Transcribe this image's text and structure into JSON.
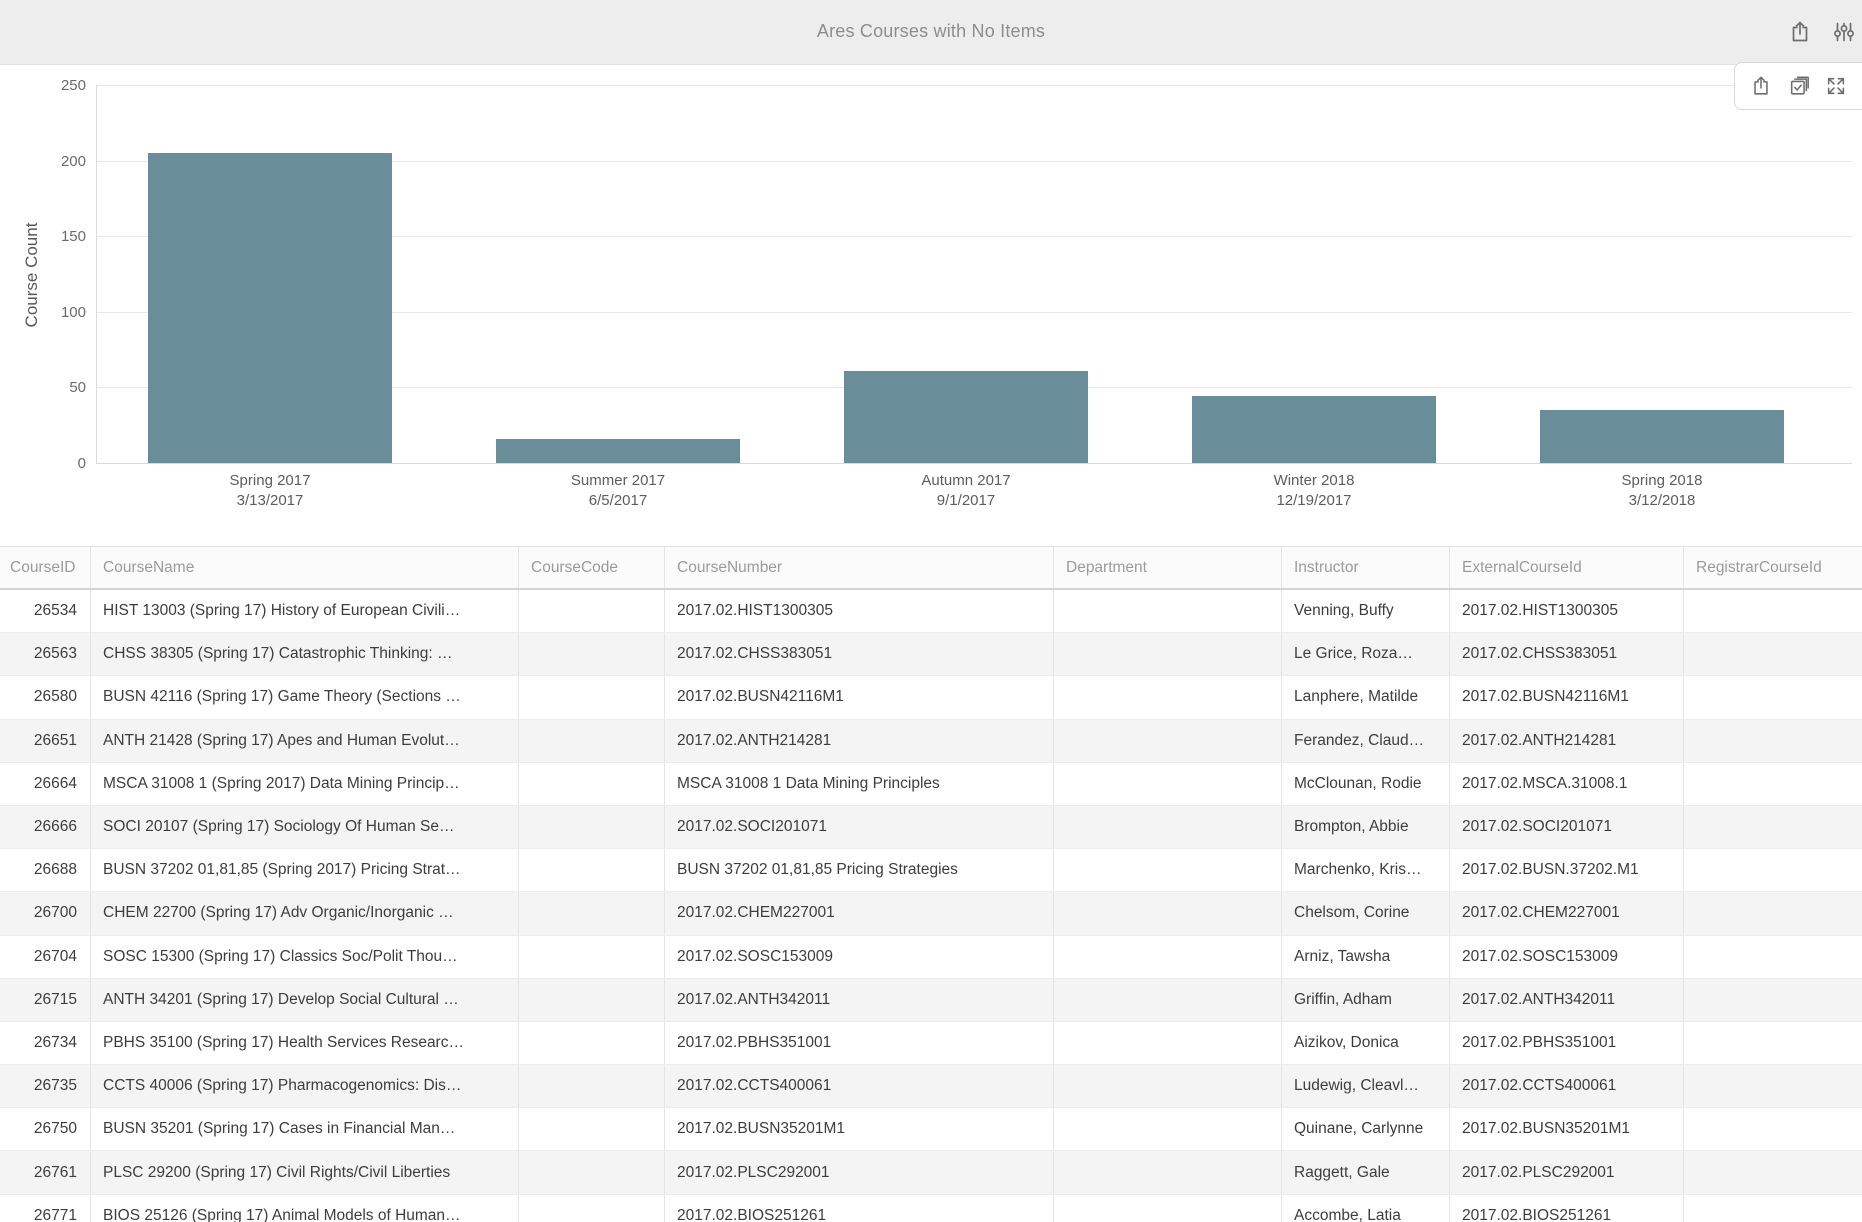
{
  "topbar": {
    "title": "Ares Courses with No Items",
    "icons": [
      {
        "name": "share-icon"
      },
      {
        "name": "filter-sliders-icon"
      }
    ]
  },
  "chart_toolbar": {
    "icons": [
      {
        "name": "share-icon"
      },
      {
        "name": "select-checkbox-icon"
      },
      {
        "name": "expand-fullscreen-icon"
      }
    ]
  },
  "chart_data": {
    "type": "bar",
    "title": "Ares Courses with No Items",
    "categories": [
      "Spring 2017",
      "Summer 2017",
      "Autumn 2017",
      "Winter 2018",
      "Spring 2018"
    ],
    "category_sublabels": [
      "3/13/2017",
      "6/5/2017",
      "9/1/2017",
      "12/19/2017",
      "3/12/2018"
    ],
    "values": [
      205,
      16,
      61,
      44,
      35
    ],
    "xlabel": "",
    "ylabel": "Course Count",
    "ylim": [
      0,
      250
    ],
    "yticks": [
      0,
      50,
      100,
      150,
      200,
      250
    ],
    "grid": true,
    "legend": "none",
    "bar_color": "#698d99"
  },
  "table": {
    "columns": [
      "CourseID",
      "CourseName",
      "CourseCode",
      "CourseNumber",
      "Department",
      "Instructor",
      "ExternalCourseId",
      "RegistrarCourseId"
    ],
    "rows": [
      [
        "26534",
        "HIST 13003 (Spring 17) History of European Civili…",
        "",
        "2017.02.HIST1300305",
        "",
        "Venning, Buffy",
        "2017.02.HIST1300305",
        ""
      ],
      [
        "26563",
        "CHSS 38305 (Spring 17) Catastrophic Thinking: …",
        "",
        "2017.02.CHSS383051",
        "",
        "Le Grice, Roza…",
        "2017.02.CHSS383051",
        ""
      ],
      [
        "26580",
        "BUSN 42116 (Spring 17) Game Theory (Sections …",
        "",
        "2017.02.BUSN42116M1",
        "",
        "Lanphere, Matilde",
        "2017.02.BUSN42116M1",
        ""
      ],
      [
        "26651",
        "ANTH 21428 (Spring 17) Apes and Human Evolut…",
        "",
        "2017.02.ANTH214281",
        "",
        "Ferandez, Claud…",
        "2017.02.ANTH214281",
        ""
      ],
      [
        "26664",
        "MSCA 31008 1 (Spring 2017) Data Mining Princip…",
        "",
        "MSCA 31008 1 Data Mining Principles",
        "",
        "McClounan, Rodie",
        "2017.02.MSCA.31008.1",
        ""
      ],
      [
        "26666",
        "SOCI 20107 (Spring 17) Sociology Of Human Se…",
        "",
        "2017.02.SOCI201071",
        "",
        "Brompton, Abbie",
        "2017.02.SOCI201071",
        ""
      ],
      [
        "26688",
        "BUSN 37202 01,81,85 (Spring 2017) Pricing Strat…",
        "",
        "BUSN 37202 01,81,85 Pricing Strategies",
        "",
        "Marchenko, Kris…",
        "2017.02.BUSN.37202.M1",
        ""
      ],
      [
        "26700",
        "CHEM 22700 (Spring 17) Adv Organic/Inorganic …",
        "",
        "2017.02.CHEM227001",
        "",
        "Chelsom, Corine",
        "2017.02.CHEM227001",
        ""
      ],
      [
        "26704",
        "SOSC 15300 (Spring 17) Classics Soc/Polit Thou…",
        "",
        "2017.02.SOSC153009",
        "",
        "Arniz, Tawsha",
        "2017.02.SOSC153009",
        ""
      ],
      [
        "26715",
        "ANTH 34201 (Spring 17) Develop Social Cultural …",
        "",
        "2017.02.ANTH342011",
        "",
        "Griffin, Adham",
        "2017.02.ANTH342011",
        ""
      ],
      [
        "26734",
        "PBHS 35100 (Spring 17) Health Services Researc…",
        "",
        "2017.02.PBHS351001",
        "",
        "Aizikov, Donica",
        "2017.02.PBHS351001",
        ""
      ],
      [
        "26735",
        "CCTS 40006 (Spring 17) Pharmacogenomics: Dis…",
        "",
        "2017.02.CCTS400061",
        "",
        "Ludewig, Cleavl…",
        "2017.02.CCTS400061",
        ""
      ],
      [
        "26750",
        "BUSN 35201 (Spring 17) Cases in Financial Man…",
        "",
        "2017.02.BUSN35201M1",
        "",
        "Quinane, Carlynne",
        "2017.02.BUSN35201M1",
        ""
      ],
      [
        "26761",
        "PLSC 29200 (Spring 17) Civil Rights/Civil Liberties",
        "",
        "2017.02.PLSC292001",
        "",
        "Raggett, Gale",
        "2017.02.PLSC292001",
        ""
      ],
      [
        "26771",
        "BIOS 25126 (Spring 17) Animal Models of Human…",
        "",
        "2017.02.BIOS251261",
        "",
        "Accombe, Latia",
        "2017.02.BIOS251261",
        ""
      ]
    ]
  }
}
